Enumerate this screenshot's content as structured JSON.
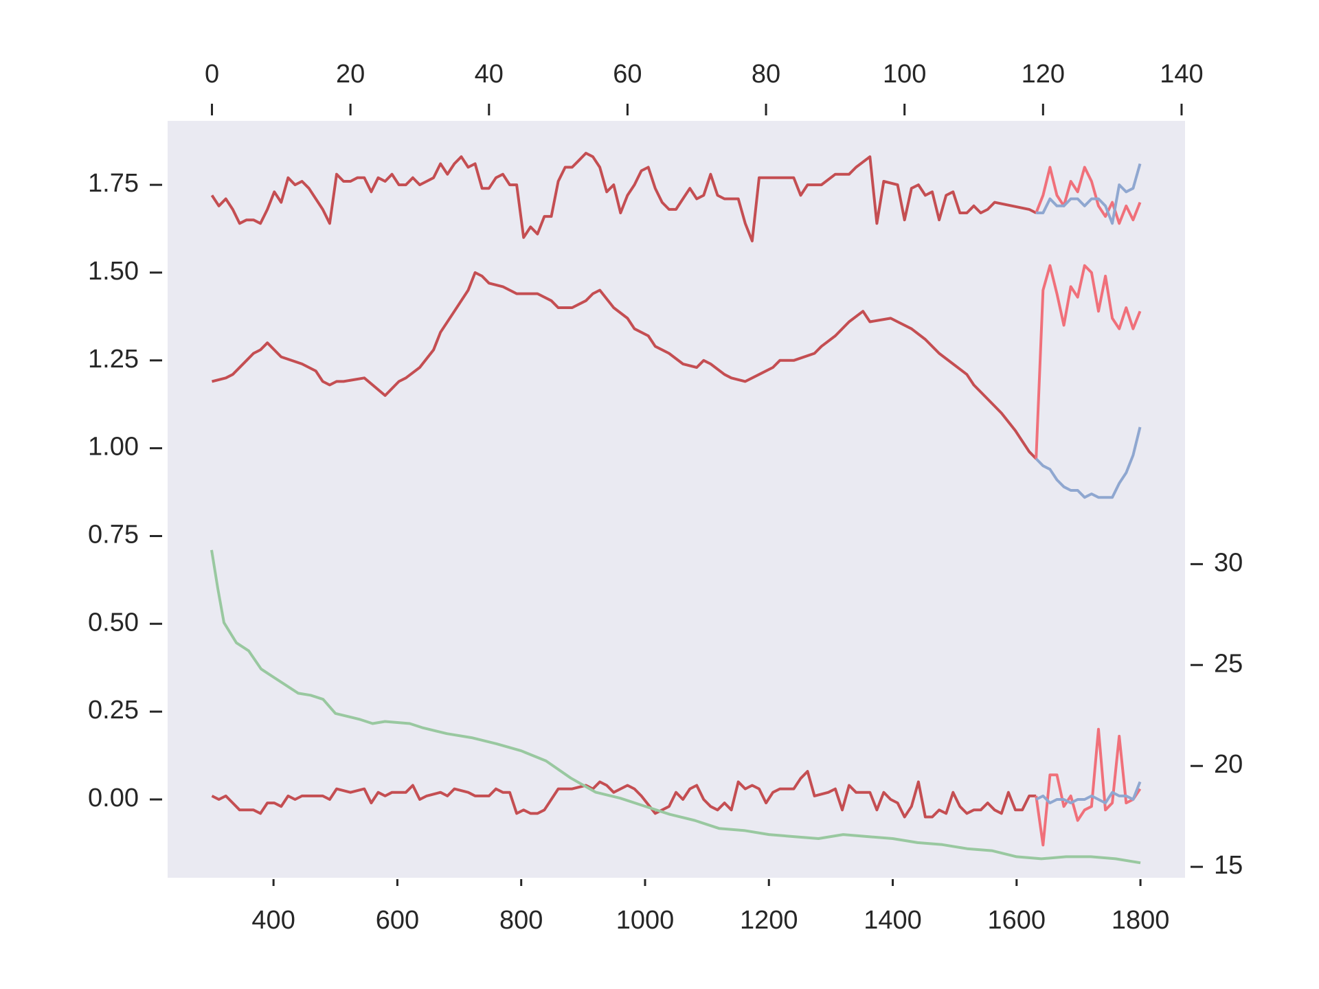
{
  "chart_data": {
    "type": "line",
    "xlim": [
      229,
      1872
    ],
    "xticks": [
      400,
      600,
      800,
      1000,
      1200,
      1400,
      1600,
      1800
    ],
    "x2lim": [
      -6.4,
      140.5
    ],
    "x2ticks": [
      0,
      20,
      40,
      60,
      80,
      100,
      120,
      140
    ],
    "ylim": [
      -0.223,
      1.932
    ],
    "yticks": [
      {
        "value": 0,
        "label": "0.00"
      },
      0.25,
      {
        "value": 0.5,
        "label": "0.50"
      },
      0.75,
      {
        "value": 1,
        "label": "1.00"
      },
      1.25,
      {
        "value": 1.5,
        "label": "1.50"
      },
      1.75
    ],
    "y2lim": [
      14.46,
      51.96
    ],
    "y2ticks": [
      15,
      20,
      25,
      30
    ],
    "grid": false,
    "background": "#eaeaf2",
    "series": [
      {
        "color": "#c44e52",
        "xaxis": "x2",
        "x": [
          0,
          1,
          2,
          3,
          4,
          5,
          6,
          7,
          8,
          9,
          10,
          11,
          12,
          13,
          14,
          15,
          16,
          17,
          18,
          19,
          20,
          21,
          22,
          23,
          24,
          25,
          26,
          27,
          28,
          29,
          30,
          31,
          32,
          33,
          34,
          35,
          36,
          37,
          38,
          39,
          40,
          41,
          42,
          43,
          44,
          45,
          46,
          47,
          48,
          49,
          50,
          51,
          52,
          53,
          54,
          55,
          56,
          57,
          58,
          59,
          60,
          61,
          62,
          63,
          64,
          65,
          66,
          67,
          68,
          69,
          70,
          71,
          72,
          73,
          74,
          75,
          76,
          77,
          78,
          79,
          80,
          84,
          85,
          86,
          88,
          90,
          92,
          93,
          95,
          96,
          97,
          99,
          100,
          101,
          102,
          103,
          104,
          105,
          106,
          107,
          108,
          109,
          110,
          111,
          112,
          113,
          118,
          119
        ],
        "values": [
          1.72,
          1.69,
          1.71,
          1.68,
          1.64,
          1.65,
          1.65,
          1.64,
          1.68,
          1.73,
          1.7,
          1.77,
          1.75,
          1.76,
          1.74,
          1.71,
          1.68,
          1.64,
          1.78,
          1.76,
          1.76,
          1.77,
          1.77,
          1.73,
          1.77,
          1.76,
          1.78,
          1.75,
          1.75,
          1.77,
          1.75,
          1.76,
          1.77,
          1.81,
          1.78,
          1.81,
          1.83,
          1.8,
          1.81,
          1.74,
          1.74,
          1.77,
          1.78,
          1.75,
          1.75,
          1.6,
          1.63,
          1.61,
          1.66,
          1.66,
          1.76,
          1.8,
          1.8,
          1.82,
          1.84,
          1.83,
          1.8,
          1.73,
          1.75,
          1.67,
          1.72,
          1.75,
          1.79,
          1.8,
          1.74,
          1.7,
          1.68,
          1.68,
          1.71,
          1.74,
          1.71,
          1.72,
          1.78,
          1.72,
          1.71,
          1.71,
          1.71,
          1.64,
          1.59,
          1.77,
          1.77,
          1.77,
          1.72,
          1.75,
          1.75,
          1.78,
          1.78,
          1.8,
          1.83,
          1.64,
          1.76,
          1.75,
          1.65,
          1.74,
          1.75,
          1.72,
          1.73,
          1.65,
          1.72,
          1.73,
          1.67,
          1.67,
          1.69,
          1.67,
          1.68,
          1.7,
          1.68,
          1.67
        ]
      },
      {
        "color": "#f0707a",
        "xaxis": "x2",
        "x": [
          119,
          120,
          121,
          122,
          123,
          124,
          125,
          126,
          127,
          128,
          129,
          130,
          131,
          132,
          133,
          134
        ],
        "values": [
          1.67,
          1.72,
          1.8,
          1.72,
          1.69,
          1.76,
          1.73,
          1.8,
          1.76,
          1.69,
          1.66,
          1.7,
          1.64,
          1.69,
          1.65,
          1.7
        ]
      },
      {
        "color": "#8fa7d0",
        "xaxis": "x2",
        "x": [
          119,
          120,
          121,
          122,
          123,
          124,
          125,
          126,
          127,
          128,
          129,
          130,
          131,
          132,
          133,
          134
        ],
        "values": [
          1.67,
          1.67,
          1.71,
          1.69,
          1.69,
          1.71,
          1.71,
          1.69,
          1.71,
          1.71,
          1.69,
          1.64,
          1.75,
          1.73,
          1.74,
          1.81
        ]
      },
      {
        "color": "#c44e52",
        "xaxis": "x2",
        "x": [
          0,
          2,
          3,
          5,
          6,
          7,
          8,
          10,
          13,
          15,
          16,
          17,
          18,
          19,
          22,
          25,
          27,
          28,
          30,
          32,
          33,
          35,
          37,
          38,
          39,
          40,
          42,
          44,
          47,
          49,
          50,
          52,
          54,
          55,
          56,
          58,
          60,
          61,
          63,
          64,
          66,
          68,
          70,
          71,
          72,
          74,
          75,
          77,
          79,
          81,
          82,
          84,
          87,
          88,
          90,
          92,
          94,
          95,
          98,
          99,
          101,
          103,
          105,
          107,
          109,
          110,
          112,
          114,
          116,
          117,
          118,
          119
        ],
        "values": [
          1.19,
          1.2,
          1.21,
          1.25,
          1.27,
          1.28,
          1.3,
          1.26,
          1.24,
          1.22,
          1.19,
          1.18,
          1.19,
          1.19,
          1.2,
          1.15,
          1.19,
          1.2,
          1.23,
          1.28,
          1.33,
          1.39,
          1.45,
          1.5,
          1.49,
          1.47,
          1.46,
          1.44,
          1.44,
          1.42,
          1.4,
          1.4,
          1.42,
          1.44,
          1.45,
          1.4,
          1.37,
          1.34,
          1.32,
          1.29,
          1.27,
          1.24,
          1.23,
          1.25,
          1.24,
          1.21,
          1.2,
          1.19,
          1.21,
          1.23,
          1.25,
          1.25,
          1.27,
          1.29,
          1.32,
          1.36,
          1.39,
          1.36,
          1.37,
          1.36,
          1.34,
          1.31,
          1.27,
          1.24,
          1.21,
          1.18,
          1.14,
          1.1,
          1.05,
          1.02,
          0.99,
          0.97
        ]
      },
      {
        "color": "#f0707a",
        "xaxis": "x2",
        "x": [
          119,
          120,
          121,
          122,
          123,
          124,
          125,
          126,
          127,
          128,
          129,
          130,
          131,
          132,
          133,
          134
        ],
        "values": [
          0.97,
          1.45,
          1.52,
          1.44,
          1.35,
          1.46,
          1.43,
          1.52,
          1.5,
          1.39,
          1.49,
          1.37,
          1.34,
          1.4,
          1.34,
          1.39
        ]
      },
      {
        "color": "#8fa7d0",
        "xaxis": "x2",
        "x": [
          119,
          120,
          121,
          122,
          123,
          124,
          125,
          126,
          127,
          128,
          129,
          130,
          131,
          132,
          133,
          134
        ],
        "values": [
          0.97,
          0.95,
          0.94,
          0.91,
          0.89,
          0.88,
          0.88,
          0.86,
          0.87,
          0.86,
          0.86,
          0.86,
          0.9,
          0.93,
          0.98,
          1.06
        ]
      },
      {
        "color": "#c44e52",
        "xaxis": "x2",
        "x": [
          0,
          1,
          2,
          3,
          4,
          5,
          6,
          7,
          8,
          9,
          10,
          11,
          12,
          13,
          14,
          16,
          17,
          18,
          20,
          22,
          23,
          24,
          25,
          26,
          28,
          29,
          30,
          31,
          33,
          34,
          35,
          37,
          38,
          40,
          41,
          42,
          43,
          44,
          45,
          46,
          47,
          48,
          50,
          51,
          52,
          54,
          55,
          56,
          57,
          58,
          59,
          60,
          61,
          62,
          64,
          65,
          66,
          67,
          68,
          69,
          70,
          71,
          72,
          73,
          74,
          75,
          76,
          77,
          78,
          79,
          80,
          81,
          82,
          84,
          85,
          86,
          87,
          89,
          90,
          91,
          92,
          93,
          95,
          96,
          97,
          98,
          99,
          100,
          101,
          102,
          103,
          104,
          105,
          106,
          107,
          108,
          109,
          110,
          111,
          112,
          113,
          114,
          115,
          116,
          117,
          118,
          119
        ],
        "values": [
          0.01,
          0.0,
          0.01,
          -0.01,
          -0.03,
          -0.03,
          -0.03,
          -0.04,
          -0.01,
          -0.01,
          -0.02,
          0.01,
          0.0,
          0.01,
          0.01,
          0.01,
          0.0,
          0.03,
          0.02,
          0.03,
          -0.01,
          0.02,
          0.01,
          0.02,
          0.02,
          0.04,
          0.0,
          0.01,
          0.02,
          0.01,
          0.03,
          0.02,
          0.01,
          0.01,
          0.03,
          0.02,
          0.02,
          -0.04,
          -0.03,
          -0.04,
          -0.04,
          -0.03,
          0.03,
          0.03,
          0.03,
          0.04,
          0.03,
          0.05,
          0.04,
          0.02,
          0.03,
          0.04,
          0.03,
          0.01,
          -0.04,
          -0.03,
          -0.02,
          0.02,
          0.0,
          0.03,
          0.04,
          0.0,
          -0.02,
          -0.03,
          -0.01,
          -0.03,
          0.05,
          0.03,
          0.04,
          0.03,
          -0.01,
          0.02,
          0.03,
          0.03,
          0.06,
          0.08,
          0.01,
          0.02,
          0.03,
          -0.03,
          0.04,
          0.02,
          0.02,
          -0.03,
          0.02,
          0.0,
          -0.01,
          -0.05,
          -0.02,
          0.05,
          -0.05,
          -0.05,
          -0.03,
          -0.04,
          0.02,
          -0.02,
          -0.04,
          -0.03,
          -0.03,
          -0.01,
          -0.03,
          -0.04,
          0.02,
          -0.03,
          -0.03,
          0.01,
          0.01
        ]
      },
      {
        "color": "#f0707a",
        "xaxis": "x2",
        "x": [
          119,
          120,
          121,
          122,
          123,
          124,
          125,
          126,
          127,
          128,
          129,
          130,
          131,
          132,
          133,
          134
        ],
        "values": [
          0.01,
          -0.13,
          0.07,
          0.07,
          -0.02,
          0.01,
          -0.06,
          -0.03,
          -0.02,
          0.2,
          -0.03,
          -0.01,
          0.18,
          -0.01,
          0.0,
          0.03
        ]
      },
      {
        "color": "#8fa7d0",
        "xaxis": "x2",
        "x": [
          119,
          120,
          121,
          122,
          123,
          124,
          125,
          126,
          127,
          128,
          129,
          130,
          131,
          132,
          133,
          134
        ],
        "values": [
          0.0,
          0.01,
          -0.01,
          0.0,
          0.0,
          -0.01,
          0.0,
          0.0,
          0.01,
          0.0,
          -0.01,
          0.02,
          0.01,
          0.01,
          0.0,
          0.05
        ]
      },
      {
        "color": "#99c8a0",
        "axis": "y2",
        "x": [
          300,
          310,
          320,
          340,
          360,
          380,
          400,
          420,
          440,
          460,
          480,
          500,
          540,
          560,
          580,
          620,
          640,
          680,
          720,
          760,
          800,
          840,
          880,
          920,
          960,
          1000,
          1040,
          1080,
          1120,
          1160,
          1200,
          1240,
          1280,
          1320,
          1360,
          1400,
          1440,
          1480,
          1520,
          1560,
          1600,
          1640,
          1680,
          1720,
          1760,
          1800
        ],
        "values": [
          30.7,
          28.8,
          27.1,
          26.1,
          25.7,
          24.8,
          24.4,
          24.0,
          23.6,
          23.5,
          23.3,
          22.6,
          22.3,
          22.1,
          22.2,
          22.1,
          21.9,
          21.6,
          21.4,
          21.1,
          20.75,
          20.25,
          19.4,
          18.7,
          18.4,
          18.0,
          17.6,
          17.3,
          16.9,
          16.8,
          16.6,
          16.5,
          16.4,
          16.6,
          16.5,
          16.4,
          16.2,
          16.1,
          15.9,
          15.8,
          15.5,
          15.4,
          15.5,
          15.5,
          15.4,
          15.2
        ]
      }
    ]
  }
}
